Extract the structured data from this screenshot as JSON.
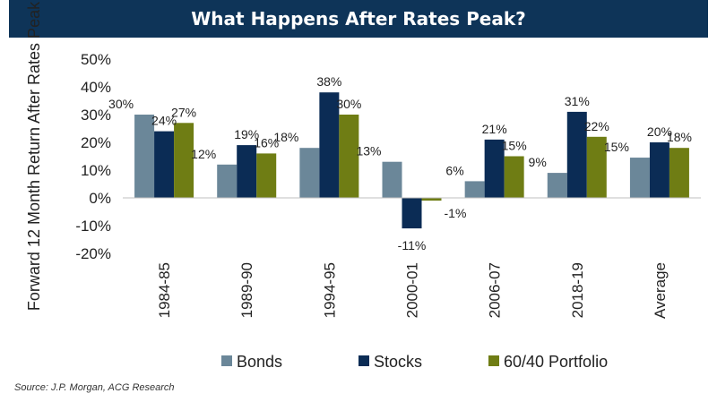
{
  "source": "Source: J.P. Morgan, ACG Research",
  "colors": {
    "title_bg": "#0e3458",
    "Bonds": "#6b8799",
    "Stocks": "#0b2c55",
    "6040": "#6f7d14"
  },
  "chart_data": {
    "type": "bar",
    "title": "What Happens After Rates Peak?",
    "ylabel": "Forward 12 Month Return After Rates Peak",
    "xlabel": "",
    "ylim": [
      -20,
      50
    ],
    "yticks": [
      50,
      40,
      30,
      20,
      10,
      0,
      -10,
      -20
    ],
    "ytick_labels": [
      "50%",
      "40%",
      "30%",
      "20%",
      "10%",
      "0%",
      "-10%",
      "-20%"
    ],
    "grid": false,
    "legend_position": "bottom",
    "categories": [
      "1984-85",
      "1989-90",
      "1994-95",
      "2000-01",
      "2006-07",
      "2018-19",
      "Average"
    ],
    "series": [
      {
        "name": "Bonds",
        "values": [
          30,
          12,
          18,
          13,
          6,
          9,
          14.5
        ],
        "labels": [
          "30%",
          "12%",
          "18%",
          "13%",
          "6%",
          "9%",
          "15%"
        ],
        "color": "#6b8799"
      },
      {
        "name": "Stocks",
        "values": [
          24,
          19,
          38,
          -11,
          21,
          31,
          20
        ],
        "labels": [
          "24%",
          "19%",
          "38%",
          "-11%",
          "21%",
          "31%",
          "20%"
        ],
        "color": "#0b2c55"
      },
      {
        "name": "60/40 Portfolio",
        "values": [
          27,
          16,
          30,
          -1,
          15,
          22,
          18
        ],
        "labels": [
          "27%",
          "16%",
          "30%",
          "-1%",
          "15%",
          "22%",
          "18%"
        ],
        "color": "#6f7d14"
      }
    ]
  }
}
